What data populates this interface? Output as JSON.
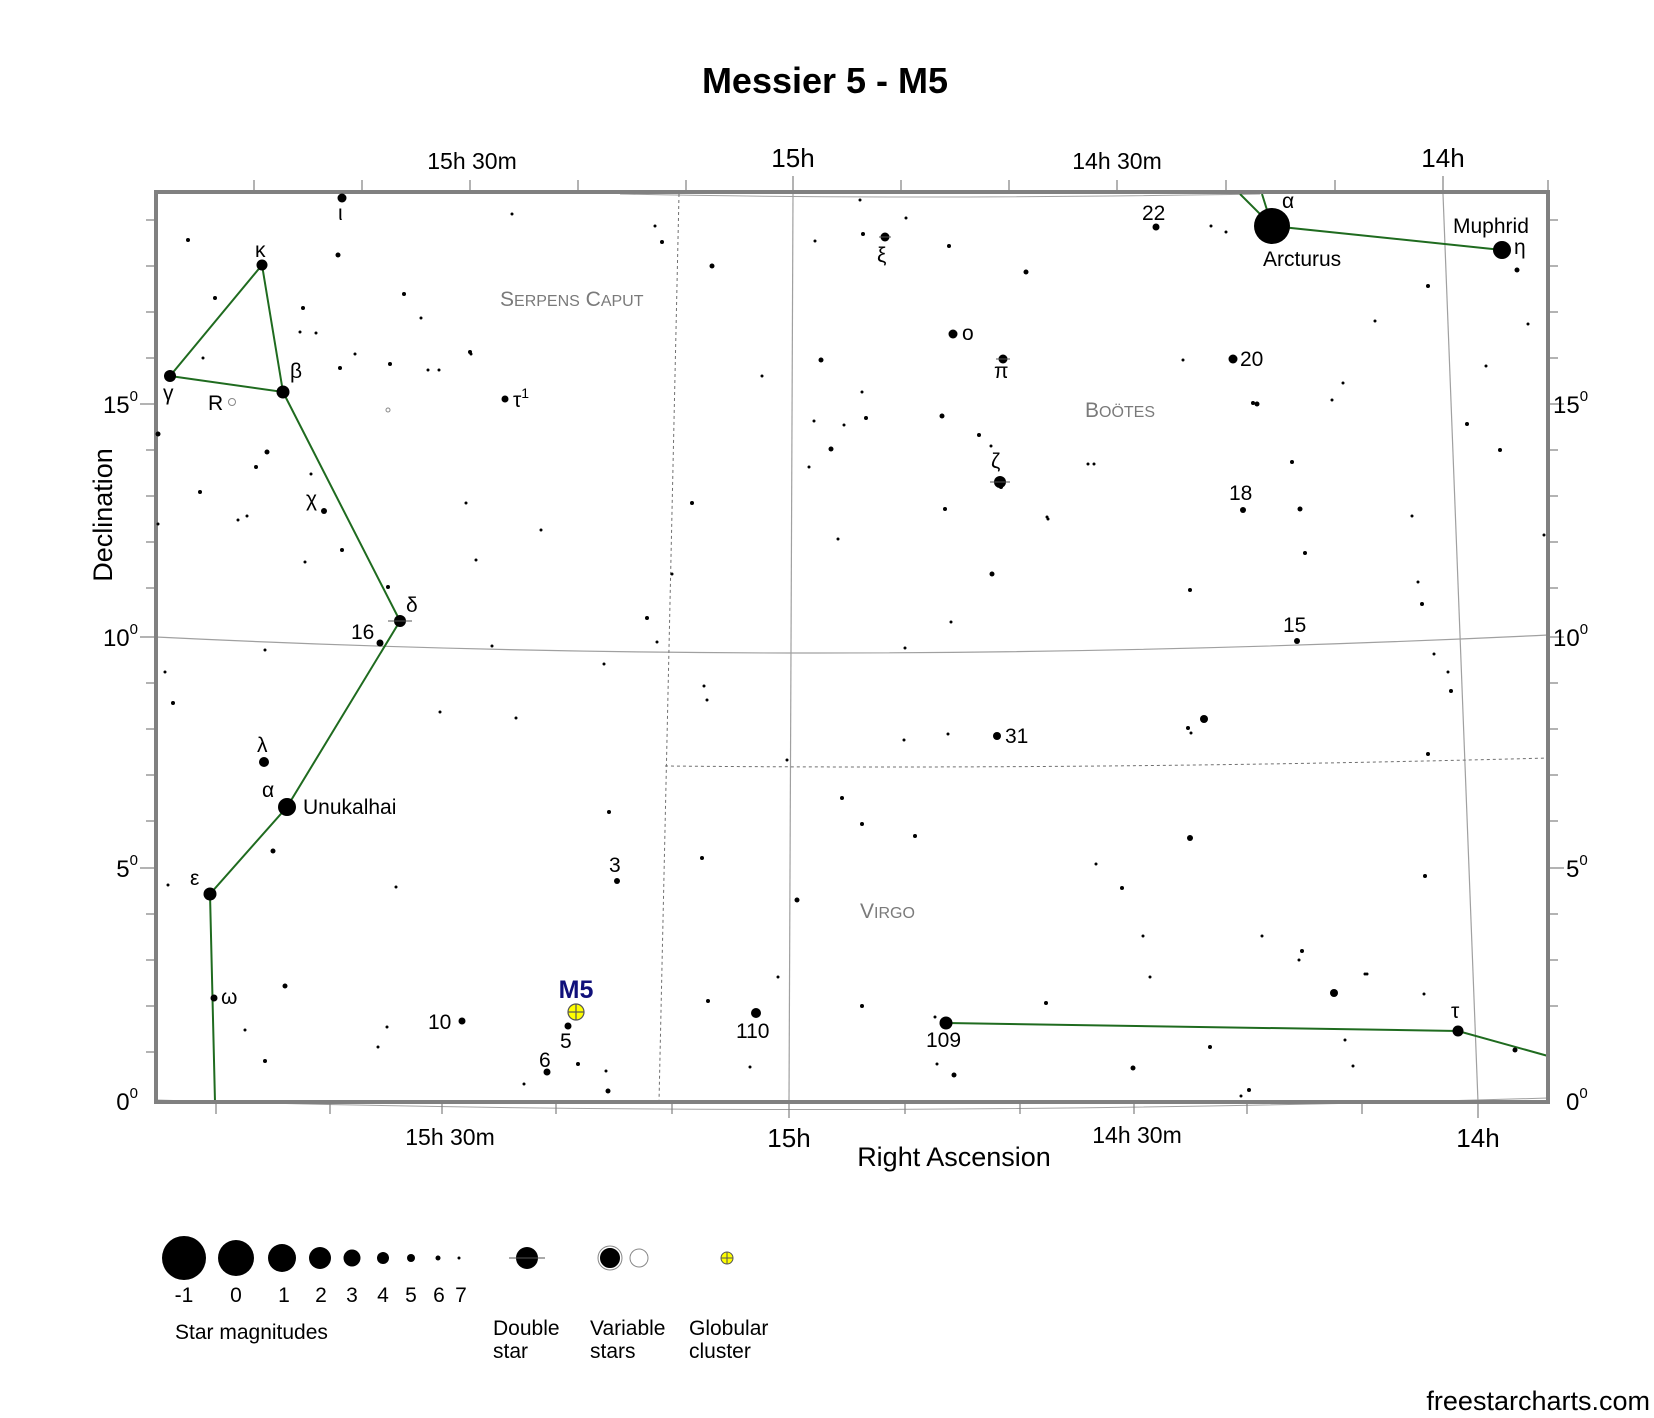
{
  "title": "Messier 5 - M5",
  "axes": {
    "x_label": "Right Ascension",
    "y_label": "Declination",
    "ra_top_ticks": [
      "15h 30m",
      "15h",
      "14h 30m",
      "14h"
    ],
    "ra_bottom_ticks": [
      "15h 30m",
      "15h",
      "14h 30m",
      "14h"
    ],
    "dec_ticks": [
      {
        "base": "15",
        "sup": "0"
      },
      {
        "base": "10",
        "sup": "0"
      },
      {
        "base": "5",
        "sup": "0"
      },
      {
        "base": "0",
        "sup": "0"
      }
    ]
  },
  "constellations": [
    {
      "id": "serpens-caput",
      "first": "S",
      "rest": "ERPENS",
      "first2": "C",
      "rest2": "APUT"
    },
    {
      "id": "bootes",
      "first": "B",
      "rest": "OÖTES"
    },
    {
      "id": "virgo",
      "first": "V",
      "rest": "IRGO"
    }
  ],
  "star_names": {
    "arcturus": "Arcturus",
    "muphrid": "Muphrid",
    "unukalhai": "Unukalhai"
  },
  "star_labels": {
    "iota_ser": "ι",
    "kappa": "κ",
    "gamma": "γ",
    "beta": "β",
    "r_ser": "R",
    "tau1": "τ",
    "tau1_sup": "1",
    "chi": "χ",
    "delta": "δ",
    "n16": "16",
    "lambda": "λ",
    "alpha_ser": "α",
    "epsilon": "ε",
    "omega": "ω",
    "n10": "10",
    "n5": "5",
    "n6": "6",
    "n3": "3",
    "n110": "110",
    "n109": "109",
    "xi": "ξ",
    "n22": "22",
    "alpha_boo": "α",
    "eta": "η",
    "omicron": "o",
    "pi": "π",
    "n20": "20",
    "zeta": "ζ",
    "n18": "18",
    "n15": "15",
    "n31": "31",
    "tau_vir": "τ"
  },
  "target": {
    "label": "M5",
    "type": "Globular cluster"
  },
  "legend": {
    "magnitudes": [
      "-1",
      "0",
      "1",
      "2",
      "3",
      "4",
      "5",
      "6",
      "7"
    ],
    "magnitudes_title": "Star magnitudes",
    "double_star": [
      "Double",
      "star"
    ],
    "variable_stars": [
      "Variable",
      "stars"
    ],
    "globular_cluster": [
      "Globular",
      "cluster"
    ]
  },
  "credit": "freestarcharts.com",
  "colors": {
    "frame": "#808080",
    "grid": "#a0a0a0",
    "constellation_line": "#1f6b1f",
    "constellation_name": "#7a7a7a",
    "target_label": "#10107a",
    "cluster_fill": "#ffff00"
  }
}
